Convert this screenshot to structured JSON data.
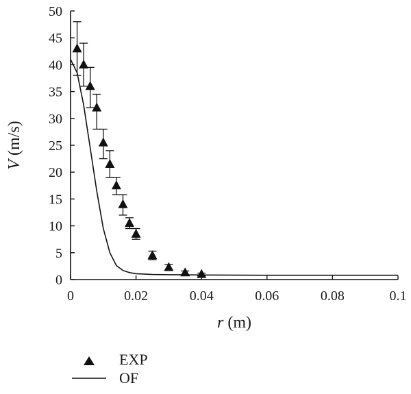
{
  "chart_data": {
    "type": "scatter",
    "xlabel_var": "r",
    "xlabel_unit": " (m)",
    "ylabel_var": "V",
    "ylabel_unit": " (m/s)",
    "xlim": [
      0,
      0.1
    ],
    "ylim": [
      0,
      50
    ],
    "x_ticks": [
      0,
      0.02,
      0.04,
      0.06,
      0.08,
      0.1
    ],
    "x_tick_labels": [
      "0",
      "0.02",
      "0.04",
      "0.06",
      "0.08",
      "0.1"
    ],
    "y_ticks": [
      0,
      5,
      10,
      15,
      20,
      25,
      30,
      35,
      40,
      45,
      50
    ],
    "y_tick_labels": [
      "0",
      "5",
      "10",
      "15",
      "20",
      "25",
      "30",
      "35",
      "40",
      "45",
      "50"
    ],
    "grid": false,
    "legend_position": "below-left",
    "series": [
      {
        "name": "EXP",
        "type": "scatter",
        "marker": "triangle",
        "color": "#111111",
        "x": [
          0.002,
          0.004,
          0.006,
          0.008,
          0.01,
          0.012,
          0.014,
          0.016,
          0.018,
          0.02,
          0.025,
          0.03,
          0.035,
          0.04
        ],
        "y": [
          43,
          40,
          36,
          32,
          25.5,
          21.5,
          17.5,
          14,
          10.5,
          8.5,
          4.5,
          2.3,
          1.3,
          1.0
        ],
        "err_high": [
          48,
          44,
          39.5,
          34.5,
          28,
          24,
          19,
          15.8,
          11.5,
          9.5,
          5.3,
          2.8,
          1.6,
          1.2
        ],
        "err_low": [
          38,
          36,
          32,
          28,
          22.5,
          19,
          15.8,
          12,
          9.5,
          7.5,
          3.7,
          1.8,
          0.9,
          0.7
        ]
      },
      {
        "name": "OF",
        "type": "line",
        "color": "#111111",
        "x": [
          0,
          0.002,
          0.004,
          0.006,
          0.008,
          0.01,
          0.012,
          0.014,
          0.016,
          0.018,
          0.02,
          0.025,
          0.03,
          0.04,
          0.06,
          0.08,
          0.1
        ],
        "y": [
          41,
          38.5,
          32.5,
          24.5,
          16.5,
          9.5,
          5,
          2.6,
          1.7,
          1.3,
          1.1,
          0.95,
          0.9,
          0.85,
          0.8,
          0.8,
          0.8
        ]
      }
    ]
  }
}
